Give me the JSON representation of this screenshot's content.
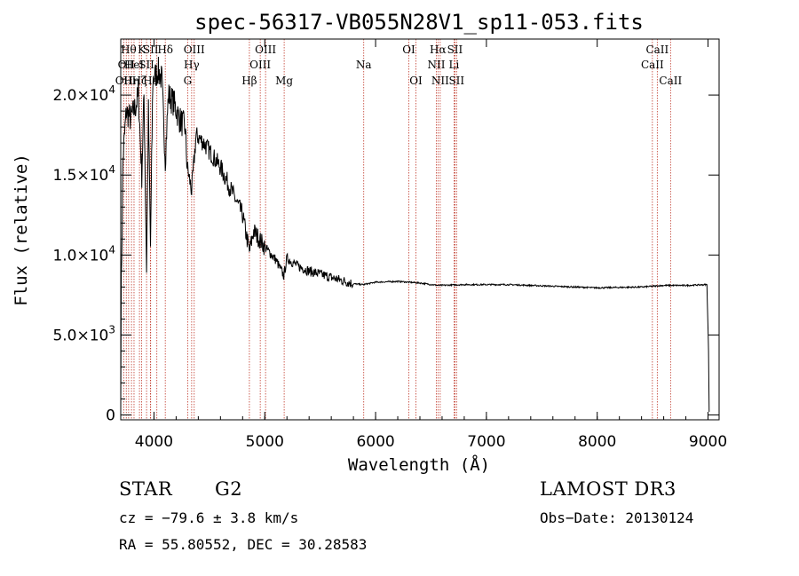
{
  "chart_data": {
    "type": "line",
    "title": "spec-56317-VB055N28V1_sp11-053.fits",
    "xlabel": "Wavelength (Å)",
    "ylabel": "Flux (relative)",
    "xlim": [
      3700,
      9100
    ],
    "ylim": [
      -300,
      23500
    ],
    "x_ticks": [
      {
        "value": 4000,
        "label": "4000"
      },
      {
        "value": 5000,
        "label": "5000"
      },
      {
        "value": 6000,
        "label": "6000"
      },
      {
        "value": 7000,
        "label": "7000"
      },
      {
        "value": 8000,
        "label": "8000"
      },
      {
        "value": 9000,
        "label": "9000"
      }
    ],
    "y_ticks": [
      {
        "value": 0,
        "mant": "0",
        "exp": ""
      },
      {
        "value": 5000,
        "mant": "5.0×10",
        "exp": "3"
      },
      {
        "value": 10000,
        "mant": "1.0×10",
        "exp": "4"
      },
      {
        "value": 15000,
        "mant": "1.5×10",
        "exp": "4"
      },
      {
        "value": 20000,
        "mant": "2.0×10",
        "exp": "4"
      }
    ],
    "spectrum_anchors": [
      [
        3700,
        1000
      ],
      [
        3705,
        8000
      ],
      [
        3720,
        16000
      ],
      [
        3750,
        19000
      ],
      [
        3790,
        18500
      ],
      [
        3830,
        19200
      ],
      [
        3860,
        20000
      ],
      [
        3890,
        15000
      ],
      [
        3910,
        20000
      ],
      [
        3933,
        9200
      ],
      [
        3950,
        19000
      ],
      [
        3968,
        10500
      ],
      [
        3990,
        21000
      ],
      [
        4040,
        21500
      ],
      [
        4070,
        21000
      ],
      [
        4102,
        16000
      ],
      [
        4130,
        20000
      ],
      [
        4180,
        19500
      ],
      [
        4230,
        18500
      ],
      [
        4280,
        18000
      ],
      [
        4300,
        15500
      ],
      [
        4340,
        14000
      ],
      [
        4380,
        17500
      ],
      [
        4450,
        17000
      ],
      [
        4500,
        16500
      ],
      [
        4600,
        15500
      ],
      [
        4700,
        14000
      ],
      [
        4800,
        12500
      ],
      [
        4861,
        10200
      ],
      [
        4900,
        11500
      ],
      [
        5000,
        10500
      ],
      [
        5100,
        9700
      ],
      [
        5172,
        8700
      ],
      [
        5200,
        9800
      ],
      [
        5300,
        9300
      ],
      [
        5400,
        9000
      ],
      [
        5500,
        8800
      ],
      [
        5600,
        8600
      ],
      [
        5700,
        8400
      ],
      [
        5800,
        8200
      ],
      [
        5890,
        8150
      ],
      [
        6000,
        8300
      ],
      [
        6200,
        8350
      ],
      [
        6400,
        8250
      ],
      [
        6563,
        8100
      ],
      [
        6800,
        8150
      ],
      [
        7200,
        8150
      ],
      [
        7600,
        8050
      ],
      [
        8000,
        7950
      ],
      [
        8400,
        8000
      ],
      [
        8600,
        8100
      ],
      [
        8800,
        8100
      ],
      [
        8990,
        8150
      ],
      [
        9005,
        4000
      ],
      [
        9010,
        200
      ]
    ],
    "lines": [
      {
        "wl": 3727,
        "label": "OII",
        "row": 2
      },
      {
        "wl": 3750,
        "label": "OII",
        "row": 1
      },
      {
        "wl": 3771,
        "label": "Hθ",
        "row": 0
      },
      {
        "wl": 3797,
        "label": "Hη",
        "row": 2
      },
      {
        "wl": 3820,
        "label": "HeI",
        "row": 1
      },
      {
        "wl": 3869,
        "label": "Hζ",
        "row": 2
      },
      {
        "wl": 3889,
        "label": "K",
        "row": 0
      },
      {
        "wl": 3933,
        "label": "SII",
        "row": 1
      },
      {
        "wl": 3968,
        "label": "Hε",
        "row": 2
      },
      {
        "wl": 3970,
        "label": "SII",
        "row": 0
      },
      {
        "wl": 4026,
        "label": "",
        "row": 0
      },
      {
        "wl": 4102,
        "label": "Hδ",
        "row": 0
      },
      {
        "wl": 4304,
        "label": "G",
        "row": 2
      },
      {
        "wl": 4340,
        "label": "Hγ",
        "row": 1
      },
      {
        "wl": 4363,
        "label": "OIII",
        "row": 0
      },
      {
        "wl": 4861,
        "label": "Hβ",
        "row": 2
      },
      {
        "wl": 4959,
        "label": "OIII",
        "row": 1
      },
      {
        "wl": 5007,
        "label": "OIII",
        "row": 0
      },
      {
        "wl": 5175,
        "label": "Mg",
        "row": 2
      },
      {
        "wl": 5893,
        "label": "Na",
        "row": 1
      },
      {
        "wl": 6300,
        "label": "OI",
        "row": 0
      },
      {
        "wl": 6364,
        "label": "OI",
        "row": 2
      },
      {
        "wl": 6548,
        "label": "NII",
        "row": 1
      },
      {
        "wl": 6563,
        "label": "Hα",
        "row": 0
      },
      {
        "wl": 6583,
        "label": "NII",
        "row": 2
      },
      {
        "wl": 6708,
        "label": "Li",
        "row": 1
      },
      {
        "wl": 6716,
        "label": "SII",
        "row": 0
      },
      {
        "wl": 6731,
        "label": "SII",
        "row": 2
      },
      {
        "wl": 8498,
        "label": "CaII",
        "row": 1
      },
      {
        "wl": 8542,
        "label": "CaII",
        "row": 0
      },
      {
        "wl": 8662,
        "label": "CaII",
        "row": 2
      }
    ]
  },
  "footer": {
    "object_type": "STAR",
    "subclass": "G2",
    "survey": "LAMOST DR3",
    "cz": "cz = −79.6 ± 3.8 km/s",
    "obs_date": "Obs−Date: 20130124",
    "coords": "RA =  55.80552, DEC =  30.28583"
  },
  "colors": {
    "line_marker": "#c0392b",
    "spectrum": "#000000"
  }
}
